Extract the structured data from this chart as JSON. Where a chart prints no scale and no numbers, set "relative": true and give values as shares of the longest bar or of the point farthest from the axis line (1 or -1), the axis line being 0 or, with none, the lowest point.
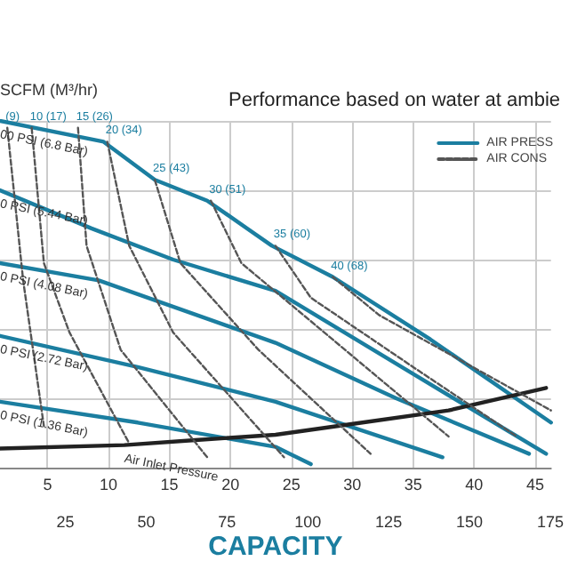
{
  "chart_data": {
    "type": "line",
    "title": "Performance based on water at ambie",
    "xlabel": "CAPACITY",
    "relative": true,
    "xlim": [
      1.1,
      46.3
    ],
    "xticks": [
      5,
      10,
      15,
      20,
      25,
      30,
      35,
      40,
      45
    ],
    "x2lim": [
      4.8,
      175.2
    ],
    "x2ticks": [
      25,
      50,
      75,
      100,
      125,
      150,
      175
    ],
    "grid": true,
    "legend": "top right",
    "marker": "none",
    "series": [
      {
        "name": "AIR PRESS",
        "color": "#1b7ea0",
        "line_style": "solid",
        "x": [
          1.1,
          9.6,
          13.8,
          18.1,
          23.4,
          28.4,
          36.4,
          46.3
        ],
        "values": [
          1.0,
          0.94,
          0.83,
          0.77,
          0.64,
          0.55,
          0.37,
          0.13
        ]
      },
      {
        "color": "#1b7ea0",
        "line_style": "solid",
        "x": [
          1.1,
          8.6,
          15.3,
          23.7,
          35.0,
          45.9
        ],
        "values": [
          0.8,
          0.69,
          0.6,
          0.51,
          0.27,
          0.04
        ]
      },
      {
        "color": "#1b7ea0",
        "line_style": "solid",
        "x": [
          1.1,
          9.2,
          23.7,
          33.6,
          44.5
        ],
        "values": [
          0.59,
          0.54,
          0.36,
          0.2,
          0.04
        ]
      },
      {
        "color": "#1b7ea0",
        "line_style": "solid",
        "x": [
          1.1,
          12.4,
          23.7,
          37.4
        ],
        "values": [
          0.38,
          0.29,
          0.19,
          0.03
        ]
      },
      {
        "color": "#1b7ea0",
        "line_style": "solid",
        "x": [
          1.1,
          12.4,
          23.7,
          26.6
        ],
        "values": [
          0.19,
          0.13,
          0.06,
          0.01
        ]
      },
      {
        "color": "#222222",
        "line_style": "solid",
        "x": [
          1.1,
          11.3,
          17.4,
          23.7,
          29.8,
          37.9,
          45.9
        ],
        "values": [
          0.055,
          0.065,
          0.08,
          0.095,
          0.125,
          0.165,
          0.23
        ]
      },
      {
        "name": "AIR CONS",
        "color": "#555555",
        "line_style": "dashed",
        "x": [
          1.7,
          3.0,
          4.7
        ],
        "values": [
          0.98,
          0.54,
          0.12
        ]
      },
      {
        "color": "#555555",
        "line_style": "dashed",
        "x": [
          3.7,
          4.7,
          6.8,
          11.7
        ],
        "values": [
          0.98,
          0.59,
          0.39,
          0.07
        ]
      },
      {
        "color": "#555555",
        "line_style": "dashed",
        "x": [
          7.5,
          8.2,
          11.0,
          18.1
        ],
        "values": [
          0.98,
          0.64,
          0.34,
          0.03
        ]
      },
      {
        "color": "#555555",
        "line_style": "dashed",
        "x": [
          9.9,
          11.7,
          15.3,
          24.4
        ],
        "values": [
          0.94,
          0.64,
          0.39,
          0.03
        ]
      },
      {
        "color": "#555555",
        "line_style": "dashed",
        "x": [
          13.8,
          15.9,
          22.3,
          31.5
        ],
        "values": [
          0.83,
          0.59,
          0.34,
          0.04
        ]
      },
      {
        "color": "#555555",
        "line_style": "dashed",
        "x": [
          18.4,
          20.9,
          29.4,
          37.9
        ],
        "values": [
          0.77,
          0.59,
          0.34,
          0.09
        ]
      },
      {
        "color": "#555555",
        "line_style": "dashed",
        "x": [
          23.7,
          26.6,
          35.0,
          43.5
        ],
        "values": [
          0.64,
          0.49,
          0.29,
          0.09
        ]
      },
      {
        "color": "#555555",
        "line_style": "dashed",
        "x": [
          28.4,
          32.2,
          46.3
        ],
        "values": [
          0.55,
          0.44,
          0.165
        ]
      }
    ],
    "annotations": [
      "SCFM (M³/hr)",
      {
        "text": "00 PSI (6.8 Bar)",
        "x": 1.1,
        "y": 1.0
      },
      {
        "text": "0 PSI (5.44 Bar)",
        "x": 1.1,
        "y": 0.8
      },
      {
        "text": "0 PSI (4.08 Bar)",
        "x": 1.1,
        "y": 0.59
      },
      {
        "text": "0 PSI (2.72 Bar)",
        "x": 1.1,
        "y": 0.38
      },
      {
        "text": "0 PSI (1.36 Bar)",
        "x": 1.1,
        "y": 0.19
      },
      {
        "text": "Air Inlet Pressure",
        "x": 11.3,
        "y": 0.065
      },
      {
        "text": "(9)",
        "x": 1.7,
        "y": 0.98
      },
      {
        "text": "10 (17)",
        "x": 3.7,
        "y": 0.98
      },
      {
        "text": "15 (26)",
        "x": 7.5,
        "y": 0.98
      },
      {
        "text": "20 (34)",
        "x": 9.9,
        "y": 0.94
      },
      {
        "text": "25 (43)",
        "x": 13.8,
        "y": 0.83
      },
      {
        "text": "30 (51)",
        "x": 18.4,
        "y": 0.77
      },
      {
        "text": "35 (60)",
        "x": 23.7,
        "y": 0.64
      },
      {
        "text": "40 (68)",
        "x": 28.4,
        "y": 0.55
      }
    ]
  }
}
